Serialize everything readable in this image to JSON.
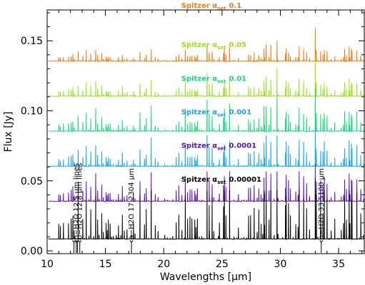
{
  "chart_data": {
    "type": "line",
    "title": "",
    "xlabel": "Wavelengths [μm]",
    "ylabel": "Flux [Jy]",
    "xlim": [
      10,
      37.2
    ],
    "ylim": [
      -0.002,
      0.172
    ],
    "x_ticks": [
      10,
      15,
      20,
      25,
      30,
      35
    ],
    "x_tick_labels": [
      "10",
      "15",
      "20",
      "25",
      "30",
      "35"
    ],
    "y_ticks": [
      0.0,
      0.05,
      0.1,
      0.15
    ],
    "y_tick_labels": [
      "0.00",
      "0.05",
      "0.10",
      "0.15"
    ],
    "grid": false,
    "legend": "inline labels above each spectrum",
    "series": [
      {
        "name": "Spitzer αset 0.1",
        "label_prefix": "Spitzer α",
        "label_sub": "set",
        "label_value": "0.1",
        "color": "#f07c18",
        "baseline": 0.1355,
        "peak": 0.168,
        "label_x": 21.5,
        "label_y": 0.1735
      },
      {
        "name": "Spitzer αset 0.05",
        "label_prefix": "Spitzer α",
        "label_sub": "set",
        "label_value": "0.05",
        "color": "#9be020",
        "baseline": 0.1105,
        "peak": 0.14,
        "label_x": 21.5,
        "label_y": 0.1455
      },
      {
        "name": "Spitzer αset 0.01",
        "label_prefix": "Spitzer α",
        "label_sub": "set",
        "label_value": "0.01",
        "color": "#16d878",
        "baseline": 0.0855,
        "peak": 0.116,
        "label_x": 21.5,
        "label_y": 0.1215
      },
      {
        "name": "Spitzer αset 0.001",
        "label_prefix": "Spitzer α",
        "label_sub": "set",
        "label_value": "0.001",
        "color": "#1aa4e8",
        "baseline": 0.0605,
        "peak": 0.088,
        "label_x": 21.5,
        "label_y": 0.0975
      },
      {
        "name": "Spitzer αset 0.0001",
        "label_prefix": "Spitzer α",
        "label_sub": "set",
        "label_value": "0.0001",
        "color": "#5a10bc",
        "baseline": 0.0355,
        "peak": 0.062,
        "label_x": 21.5,
        "label_y": 0.0735
      },
      {
        "name": "Spitzer αset 0.00001",
        "label_prefix": "Spitzer α",
        "label_sub": "set",
        "label_value": "0.00001",
        "color": "#000000",
        "baseline": 0.0085,
        "peak": 0.052,
        "label_x": 21.5,
        "label_y": 0.0495
      }
    ],
    "annotations": [
      {
        "text": "o−H2O 12.5 μm lines",
        "x": 12.5,
        "tick_x": [
          12.3,
          12.5
        ],
        "y_tick_top": 0.006
      },
      {
        "text": "p−H2O 12.8 μm lines",
        "x": 12.8,
        "tick_x": [
          12.6,
          12.8
        ],
        "y_tick_top": 0.006
      },
      {
        "text": "o−H2O 17.2304 μm",
        "x": 17.2304,
        "tick_x": [
          17.2304
        ],
        "y_tick_top": 0.006
      },
      {
        "text": "o−H2O 33.5100 μm",
        "x": 33.51,
        "tick_x": [
          33.51
        ],
        "y_tick_top": 0.006
      }
    ]
  }
}
